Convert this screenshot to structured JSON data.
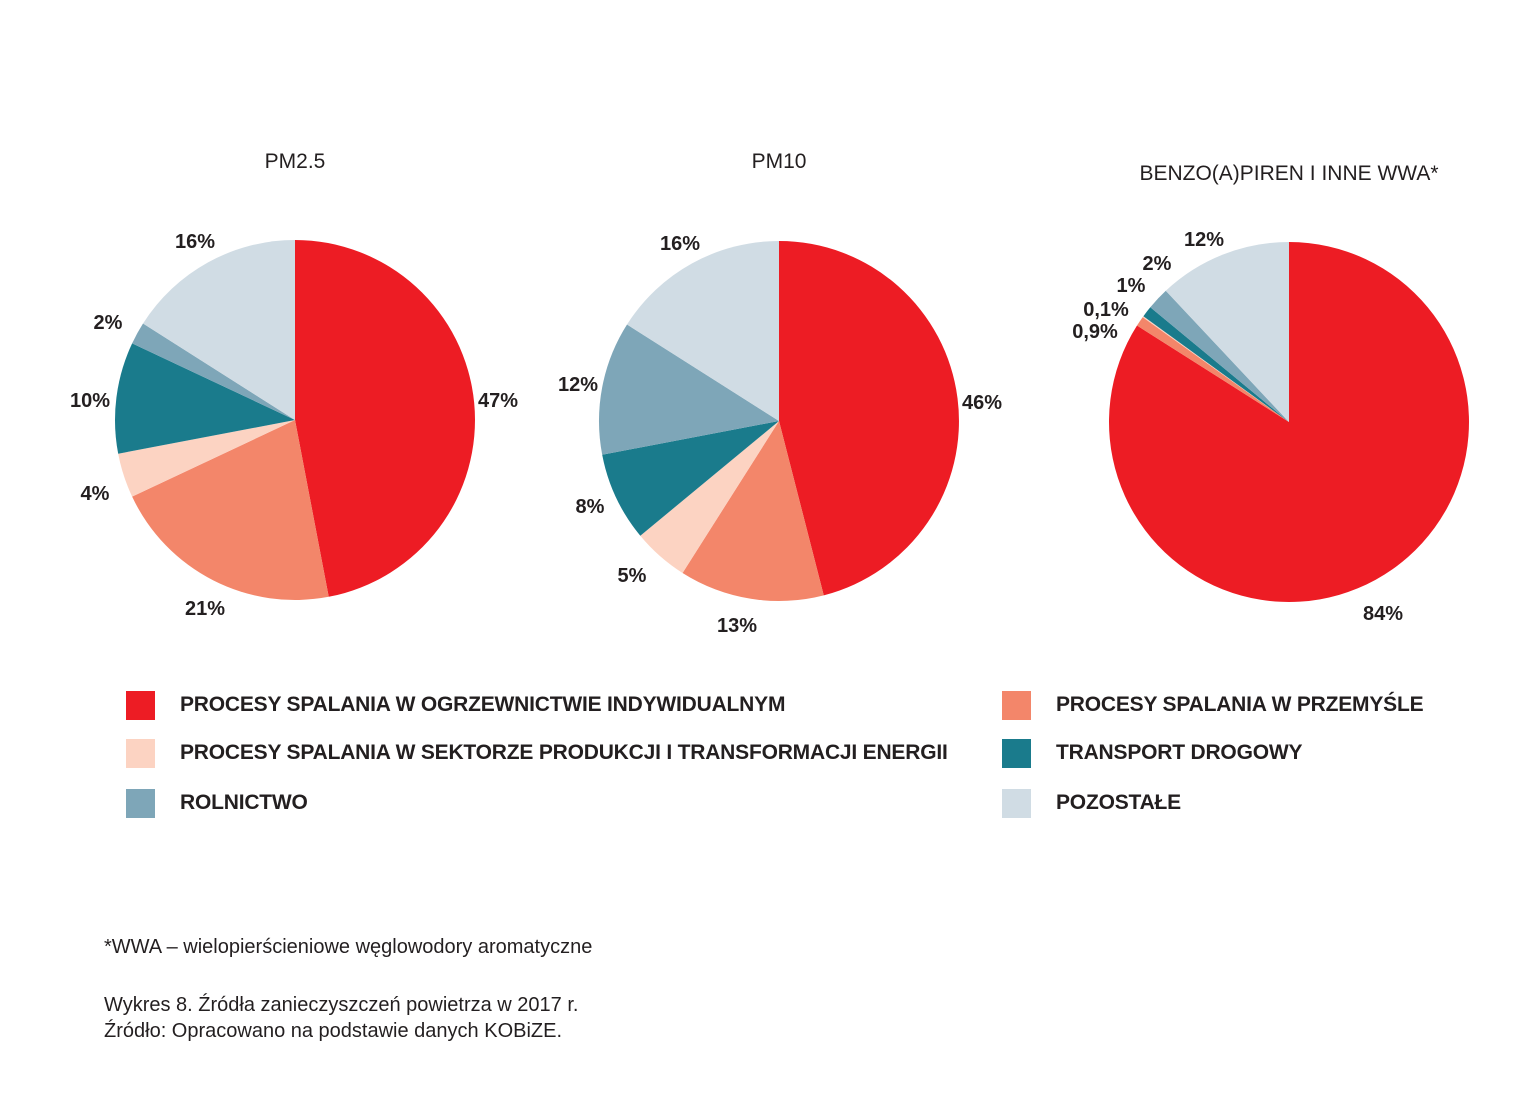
{
  "chart_data": [
    {
      "type": "pie",
      "title": "PM2.5",
      "slices": [
        {
          "category": "ind",
          "value": 47,
          "label": "47%"
        },
        {
          "category": "prz",
          "value": 21,
          "label": "21%"
        },
        {
          "category": "ene",
          "value": 4,
          "label": "4%"
        },
        {
          "category": "tra",
          "value": 10,
          "label": "10%"
        },
        {
          "category": "rol",
          "value": 2,
          "label": "2%"
        },
        {
          "category": "poz",
          "value": 16,
          "label": "16%"
        }
      ]
    },
    {
      "type": "pie",
      "title": "PM10",
      "slices": [
        {
          "category": "ind",
          "value": 46,
          "label": "46%"
        },
        {
          "category": "prz",
          "value": 13,
          "label": "13%"
        },
        {
          "category": "ene",
          "value": 5,
          "label": "5%"
        },
        {
          "category": "tra",
          "value": 8,
          "label": "8%"
        },
        {
          "category": "rol",
          "value": 12,
          "label": "12%"
        },
        {
          "category": "poz",
          "value": 16,
          "label": "16%"
        }
      ]
    },
    {
      "type": "pie",
      "title": "BENZO(A)PIREN I INNE WWA*",
      "slices": [
        {
          "category": "ind",
          "value": 84,
          "label": "84%"
        },
        {
          "category": "prz",
          "value": 0.9,
          "label": "0,9%"
        },
        {
          "category": "ene",
          "value": 0.1,
          "label": "0,1%"
        },
        {
          "category": "tra",
          "value": 1,
          "label": "1%"
        },
        {
          "category": "rol",
          "value": 2,
          "label": "2%"
        },
        {
          "category": "poz",
          "value": 12,
          "label": "12%"
        }
      ]
    }
  ],
  "legend": [
    {
      "key": "ind",
      "label": "PROCESY SPALANIA W OGRZEWNICTWIE INDYWIDUALNYM",
      "color": "#ed1c24"
    },
    {
      "key": "prz",
      "label": "PROCESY SPALANIA W PRZEMYŚLE",
      "color": "#f3866a"
    },
    {
      "key": "ene",
      "label": "PROCESY SPALANIA W SEKTORZE PRODUKCJI I TRANSFORMACJI ENERGII",
      "color": "#fcd3c2"
    },
    {
      "key": "tra",
      "label": "TRANSPORT DROGOWY",
      "color": "#1a7b8c"
    },
    {
      "key": "rol",
      "label": "ROLNICTWO",
      "color": "#7ea6b8"
    },
    {
      "key": "poz",
      "label": "POZOSTAŁE",
      "color": "#d0dce4"
    }
  ],
  "notes": {
    "footnote": "*WWA – wielopierścieniowe węglowodory aromatyczne",
    "caption": "Wykres 8. Źródła zanieczyszczeń powietrza w 2017 r.",
    "source": "Źródło: Opracowano na podstawie danych KOBiZE."
  }
}
